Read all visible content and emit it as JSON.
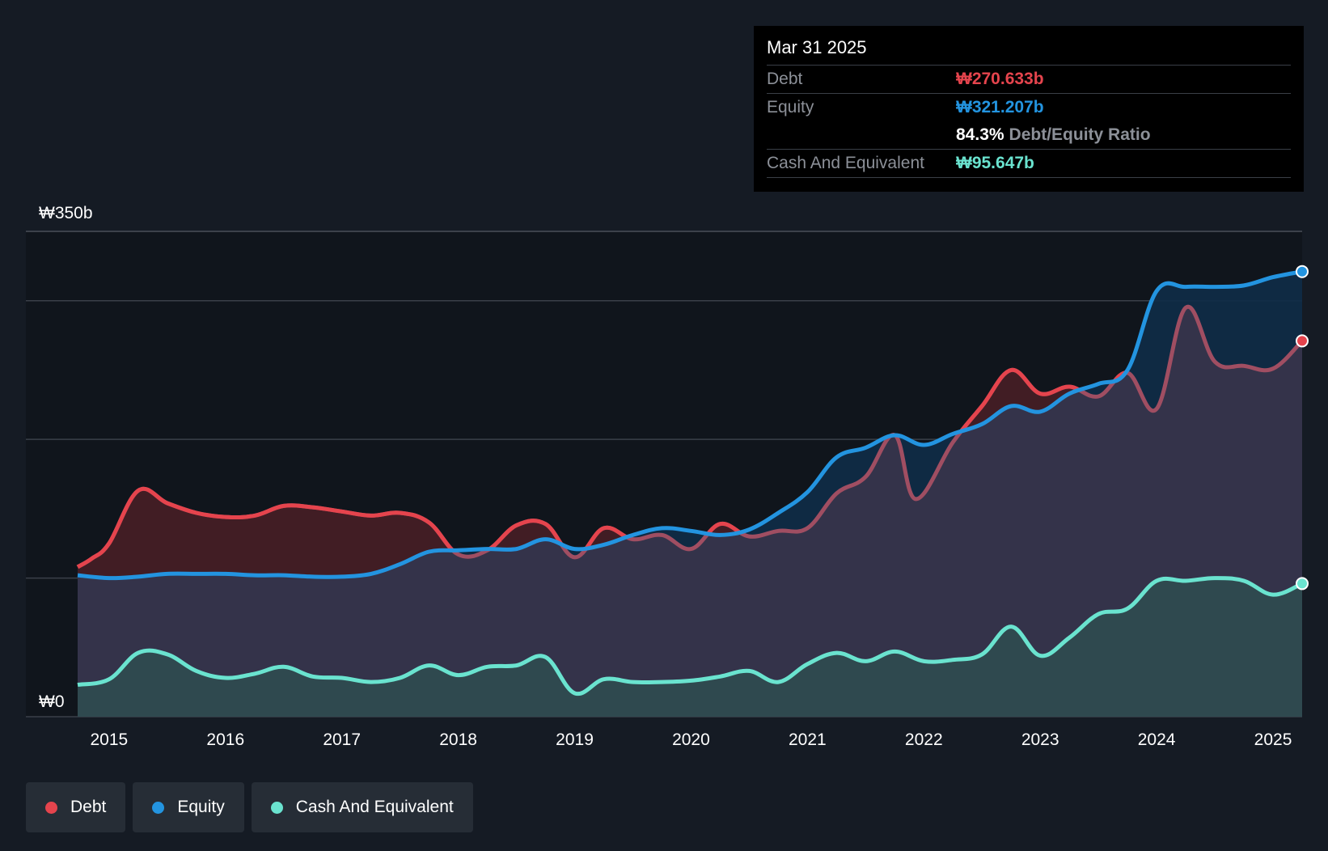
{
  "colors": {
    "background": "#151b24",
    "debt": "#e5444d",
    "equity": "#2394e0",
    "cash": "#6ae3cf",
    "grid": "#3a4049",
    "axis_text": "#ffffff"
  },
  "tooltip": {
    "date": "Mar 31 2025",
    "debt_label": "Debt",
    "debt_value": "₩270.633b",
    "equity_label": "Equity",
    "equity_value": "₩321.207b",
    "ratio_value": "84.3%",
    "ratio_label": "Debt/Equity Ratio",
    "cash_label": "Cash And Equivalent",
    "cash_value": "₩95.647b"
  },
  "legend": [
    {
      "label": "Debt",
      "color": "#e5444d"
    },
    {
      "label": "Equity",
      "color": "#2394e0"
    },
    {
      "label": "Cash And Equivalent",
      "color": "#6ae3cf"
    }
  ],
  "chart_data": {
    "type": "line",
    "title": "",
    "xlabel": "",
    "ylabel": "",
    "ylim": [
      0,
      350
    ],
    "xlim": [
      2014.73,
      2025.25
    ],
    "y_tick_labels": [
      {
        "value": 350,
        "label": "₩350b"
      },
      {
        "value": 0,
        "label": "₩0"
      }
    ],
    "y_gridlines": [
      350,
      300,
      200,
      100,
      0
    ],
    "x_ticks": [
      2015,
      2016,
      2017,
      2018,
      2019,
      2020,
      2021,
      2022,
      2023,
      2024,
      2025
    ],
    "x_tick_labels": [
      "2015",
      "2016",
      "2017",
      "2018",
      "2019",
      "2020",
      "2021",
      "2022",
      "2023",
      "2024",
      "2025"
    ],
    "grid": true,
    "legend_position": "bottom-left",
    "series": [
      {
        "name": "Debt",
        "color": "#e5444d",
        "points": [
          [
            2014.73,
            108
          ],
          [
            2014.85,
            114
          ],
          [
            2015.0,
            125
          ],
          [
            2015.25,
            163
          ],
          [
            2015.5,
            154
          ],
          [
            2015.75,
            147
          ],
          [
            2016.0,
            144
          ],
          [
            2016.25,
            145
          ],
          [
            2016.5,
            152
          ],
          [
            2016.75,
            151
          ],
          [
            2017.0,
            148
          ],
          [
            2017.25,
            145
          ],
          [
            2017.5,
            147
          ],
          [
            2017.75,
            140
          ],
          [
            2018.0,
            117
          ],
          [
            2018.25,
            120
          ],
          [
            2018.5,
            138
          ],
          [
            2018.75,
            139
          ],
          [
            2019.0,
            115
          ],
          [
            2019.25,
            136
          ],
          [
            2019.5,
            128
          ],
          [
            2019.75,
            131
          ],
          [
            2020.0,
            121
          ],
          [
            2020.25,
            139
          ],
          [
            2020.5,
            130
          ],
          [
            2020.75,
            134
          ],
          [
            2021.0,
            136
          ],
          [
            2021.25,
            161
          ],
          [
            2021.5,
            173
          ],
          [
            2021.75,
            203
          ],
          [
            2021.93,
            157
          ],
          [
            2022.25,
            198
          ],
          [
            2022.5,
            224
          ],
          [
            2022.75,
            250
          ],
          [
            2023.0,
            233
          ],
          [
            2023.25,
            238
          ],
          [
            2023.5,
            231
          ],
          [
            2023.75,
            248
          ],
          [
            2024.0,
            222
          ],
          [
            2024.25,
            295
          ],
          [
            2024.5,
            256
          ],
          [
            2024.75,
            253
          ],
          [
            2025.0,
            251
          ],
          [
            2025.25,
            271
          ]
        ]
      },
      {
        "name": "Equity",
        "color": "#2394e0",
        "points": [
          [
            2014.73,
            102
          ],
          [
            2015.0,
            100
          ],
          [
            2015.25,
            101
          ],
          [
            2015.5,
            103
          ],
          [
            2015.75,
            103
          ],
          [
            2016.0,
            103
          ],
          [
            2016.25,
            102
          ],
          [
            2016.5,
            102
          ],
          [
            2016.75,
            101
          ],
          [
            2017.0,
            101
          ],
          [
            2017.25,
            103
          ],
          [
            2017.5,
            110
          ],
          [
            2017.75,
            119
          ],
          [
            2018.0,
            120
          ],
          [
            2018.25,
            121
          ],
          [
            2018.5,
            121
          ],
          [
            2018.75,
            128
          ],
          [
            2019.0,
            121
          ],
          [
            2019.25,
            124
          ],
          [
            2019.5,
            131
          ],
          [
            2019.75,
            136
          ],
          [
            2020.0,
            134
          ],
          [
            2020.25,
            131
          ],
          [
            2020.5,
            135
          ],
          [
            2020.75,
            147
          ],
          [
            2021.0,
            162
          ],
          [
            2021.25,
            187
          ],
          [
            2021.5,
            194
          ],
          [
            2021.75,
            203
          ],
          [
            2022.0,
            196
          ],
          [
            2022.25,
            204
          ],
          [
            2022.5,
            211
          ],
          [
            2022.75,
            224
          ],
          [
            2023.0,
            220
          ],
          [
            2023.25,
            233
          ],
          [
            2023.5,
            240
          ],
          [
            2023.75,
            250
          ],
          [
            2024.0,
            307
          ],
          [
            2024.25,
            310
          ],
          [
            2024.5,
            310
          ],
          [
            2024.75,
            311
          ],
          [
            2025.0,
            317
          ],
          [
            2025.25,
            321
          ]
        ]
      },
      {
        "name": "Cash And Equivalent",
        "color": "#6ae3cf",
        "points": [
          [
            2014.73,
            23
          ],
          [
            2015.0,
            27
          ],
          [
            2015.25,
            46
          ],
          [
            2015.5,
            45
          ],
          [
            2015.75,
            33
          ],
          [
            2016.0,
            28
          ],
          [
            2016.25,
            31
          ],
          [
            2016.5,
            36
          ],
          [
            2016.75,
            29
          ],
          [
            2017.0,
            28
          ],
          [
            2017.25,
            25
          ],
          [
            2017.5,
            28
          ],
          [
            2017.75,
            37
          ],
          [
            2018.0,
            30
          ],
          [
            2018.25,
            36
          ],
          [
            2018.5,
            37
          ],
          [
            2018.75,
            43
          ],
          [
            2019.0,
            17
          ],
          [
            2019.25,
            27
          ],
          [
            2019.5,
            25
          ],
          [
            2019.75,
            25
          ],
          [
            2020.0,
            26
          ],
          [
            2020.25,
            29
          ],
          [
            2020.5,
            33
          ],
          [
            2020.75,
            25
          ],
          [
            2021.0,
            38
          ],
          [
            2021.25,
            46
          ],
          [
            2021.5,
            40
          ],
          [
            2021.75,
            47
          ],
          [
            2022.0,
            40
          ],
          [
            2022.25,
            41
          ],
          [
            2022.5,
            45
          ],
          [
            2022.75,
            65
          ],
          [
            2023.0,
            44
          ],
          [
            2023.25,
            57
          ],
          [
            2023.5,
            74
          ],
          [
            2023.75,
            78
          ],
          [
            2024.0,
            98
          ],
          [
            2024.25,
            98
          ],
          [
            2024.5,
            100
          ],
          [
            2024.75,
            98
          ],
          [
            2025.0,
            88
          ],
          [
            2025.25,
            96
          ]
        ]
      }
    ]
  }
}
